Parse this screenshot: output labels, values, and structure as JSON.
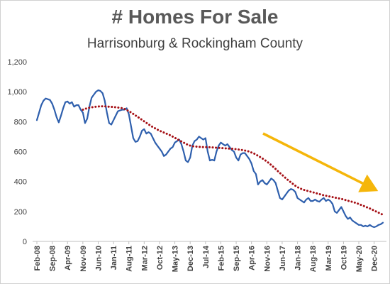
{
  "chart_data": {
    "type": "line",
    "title": "# Homes For Sale",
    "subtitle": "Harrisonburg & Rockingham County",
    "categories": [
      "Feb-08",
      null,
      null,
      null,
      null,
      null,
      null,
      "Sep-08",
      null,
      null,
      null,
      null,
      null,
      null,
      "Apr-09",
      null,
      null,
      null,
      null,
      null,
      null,
      "Nov-09",
      null,
      null,
      null,
      null,
      null,
      null,
      "Jun-10",
      null,
      null,
      null,
      null,
      null,
      null,
      "Jan-11",
      null,
      null,
      null,
      null,
      null,
      null,
      "Aug-11",
      null,
      null,
      null,
      null,
      null,
      null,
      "Mar-12",
      null,
      null,
      null,
      null,
      null,
      null,
      "Oct-12",
      null,
      null,
      null,
      null,
      null,
      null,
      "May-13",
      null,
      null,
      null,
      null,
      null,
      null,
      "Dec-13",
      null,
      null,
      null,
      null,
      null,
      null,
      "Jul-14",
      null,
      null,
      null,
      null,
      null,
      null,
      "Feb-15",
      null,
      null,
      null,
      null,
      null,
      null,
      "Sep-15",
      null,
      null,
      null,
      null,
      null,
      null,
      "Apr-16",
      null,
      null,
      null,
      null,
      null,
      null,
      "Nov-16",
      null,
      null,
      null,
      null,
      null,
      null,
      "Jun-17",
      null,
      null,
      null,
      null,
      null,
      null,
      "Jan-18",
      null,
      null,
      null,
      null,
      null,
      null,
      "Aug-18",
      null,
      null,
      null,
      null,
      null,
      null,
      "Mar-19",
      null,
      null,
      null,
      null,
      null,
      null,
      "Oct-19",
      null,
      null,
      null,
      null,
      null,
      null,
      "May-20",
      null,
      null,
      null,
      null,
      null,
      null,
      "Dec-20",
      null,
      null,
      null,
      null
    ],
    "series": [
      {
        "color": "#2e5fad",
        "values": [
          810,
          860,
          910,
          940,
          955,
          950,
          945,
          920,
          880,
          830,
          795,
          840,
          890,
          930,
          935,
          920,
          930,
          900,
          910,
          910,
          880,
          860,
          790,
          820,
          900,
          960,
          980,
          1000,
          1010,
          1005,
          990,
          940,
          860,
          790,
          780,
          810,
          840,
          870,
          875,
          880,
          880,
          890,
          850,
          770,
          690,
          665,
          670,
          700,
          740,
          750,
          720,
          730,
          720,
          690,
          660,
          640,
          620,
          600,
          570,
          580,
          600,
          620,
          630,
          660,
          670,
          680,
          650,
          600,
          540,
          530,
          560,
          640,
          670,
          680,
          700,
          690,
          680,
          690,
          600,
          540,
          545,
          540,
          600,
          640,
          660,
          650,
          640,
          650,
          630,
          610,
          600,
          560,
          540,
          580,
          590,
          590,
          570,
          550,
          520,
          470,
          450,
          380,
          400,
          410,
          390,
          380,
          400,
          420,
          410,
          390,
          340,
          290,
          280,
          300,
          320,
          340,
          350,
          345,
          330,
          290,
          280,
          270,
          260,
          280,
          290,
          270,
          270,
          280,
          270,
          265,
          280,
          290,
          270,
          280,
          270,
          250,
          200,
          190,
          210,
          230,
          200,
          170,
          150,
          160,
          140,
          130,
          120,
          110,
          110,
          100,
          105,
          100,
          110,
          100,
          95,
          100,
          110,
          115,
          125
        ]
      },
      {
        "color": "#a50f15",
        "style": "dotted",
        "values": [
          null,
          null,
          null,
          null,
          null,
          null,
          null,
          null,
          null,
          null,
          null,
          null,
          null,
          null,
          null,
          null,
          null,
          null,
          null,
          null,
          null,
          880,
          885,
          890,
          893,
          896,
          898,
          900,
          901,
          902,
          902,
          902,
          901,
          900,
          899,
          898,
          896,
          894,
          892,
          890,
          885,
          878,
          870,
          862,
          852,
          842,
          832,
          822,
          812,
          802,
          792,
          782,
          772,
          763,
          755,
          747,
          740,
          733,
          727,
          721,
          715,
          708,
          700,
          692,
          684,
          676,
          668,
          660,
          652,
          645,
          640,
          636,
          634,
          633,
          632,
          631,
          630,
          630,
          630,
          629,
          628,
          627,
          626,
          625,
          624,
          623,
          622,
          621,
          620,
          619,
          618,
          616,
          614,
          612,
          610,
          607,
          604,
          600,
          594,
          588,
          580,
          572,
          563,
          554,
          544,
          534,
          522,
          510,
          497,
          484,
          470,
          457,
          444,
          431,
          418,
          406,
          394,
          383,
          372,
          363,
          355,
          349,
          344,
          340,
          336,
          332,
          328,
          324,
          320,
          316,
          312,
          308,
          305,
          302,
          299,
          296,
          293,
          290,
          287,
          284,
          280,
          276,
          272,
          268,
          264,
          260,
          255,
          250,
          244,
          238,
          232,
          226,
          220,
          213,
          206,
          199,
          192,
          185,
          178
        ]
      }
    ],
    "ylim": [
      0,
      1200
    ],
    "yticks": [
      0,
      200,
      400,
      600,
      800,
      {
        "value": 1000,
        "label": "1,000"
      },
      {
        "value": 1200,
        "label": "1,200"
      }
    ],
    "grid": false
  }
}
